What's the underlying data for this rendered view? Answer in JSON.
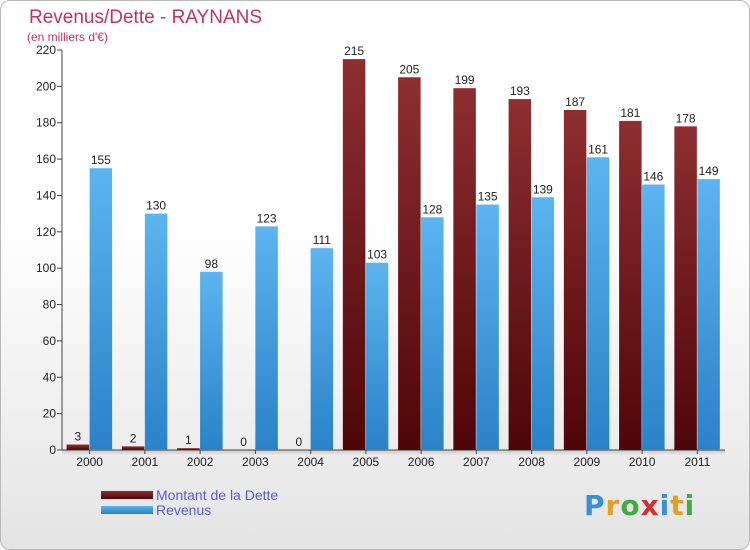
{
  "title": "Revenus/Dette - RAYNANS",
  "subtitle": "(en milliers d'€)",
  "logo": {
    "text": "Proxiti",
    "letter_colors": [
      "#3a8fd8",
      "#e0a020",
      "#44aa44",
      "#d03030",
      "#3a8fd8",
      "#e0a020",
      "#44aa44"
    ]
  },
  "chart_data": {
    "type": "bar",
    "categories": [
      "2000",
      "2001",
      "2002",
      "2003",
      "2004",
      "2005",
      "2006",
      "2007",
      "2008",
      "2009",
      "2010",
      "2011"
    ],
    "series": [
      {
        "name": "Montant de la Dette",
        "color": "#7a1a1e",
        "values": [
          3,
          2,
          1,
          0,
          0,
          215,
          205,
          199,
          193,
          187,
          181,
          178
        ]
      },
      {
        "name": "Revenus",
        "color": "#4ea6e6",
        "values": [
          155,
          130,
          98,
          123,
          111,
          103,
          128,
          135,
          139,
          161,
          146,
          149
        ]
      }
    ],
    "ylim": [
      0,
      220
    ],
    "yticks": [
      0,
      20,
      40,
      60,
      80,
      100,
      120,
      140,
      160,
      180,
      200,
      220
    ],
    "grid": false,
    "legend_position": "bottom-left"
  }
}
